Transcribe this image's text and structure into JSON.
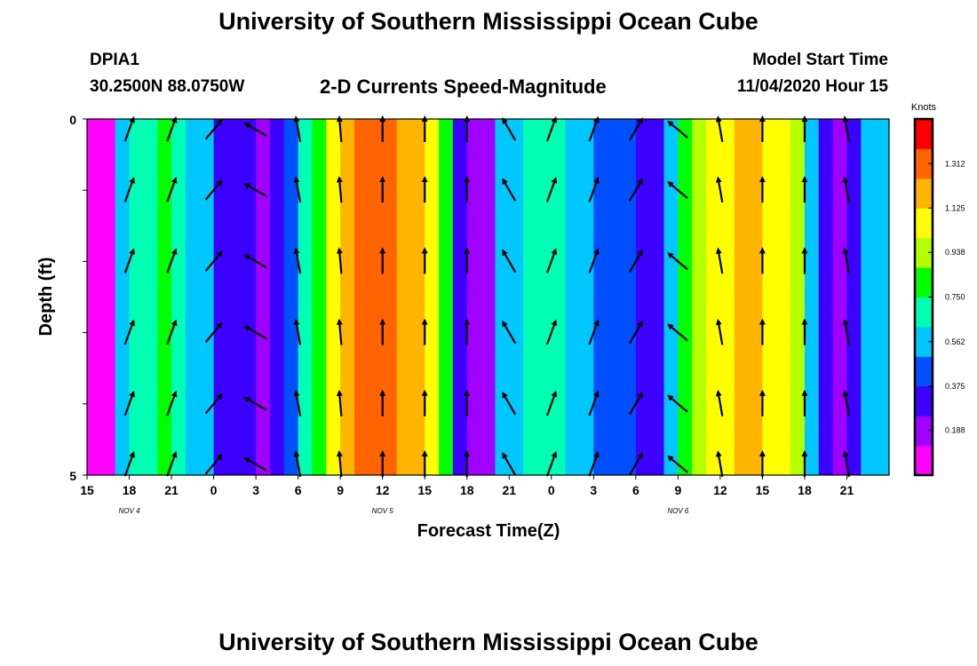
{
  "header": {
    "title": "University of Southern Mississippi Ocean Cube",
    "station": "DPIA1",
    "coords": "30.2500N 88.0750W",
    "plot_title": "2-D Currents Speed-Magnitude",
    "model_start_label": "Model Start Time",
    "model_start_value": "11/04/2020 Hour 15"
  },
  "footer": {
    "title": "University of Southern Mississippi Ocean Cube"
  },
  "chart_data": {
    "type": "heatmap",
    "title": "2-D Currents Speed-Magnitude",
    "xlabel": "Forecast Time(Z)",
    "ylabel": "Depth (ft)",
    "x_tick_labels": [
      "15",
      "18",
      "21",
      "0",
      "3",
      "6",
      "9",
      "12",
      "15",
      "18",
      "21",
      "0",
      "3",
      "6",
      "9",
      "12",
      "15",
      "18",
      "21"
    ],
    "date_labels": [
      {
        "text": "NOV 4",
        "tick_index": 1
      },
      {
        "text": "NOV 5",
        "tick_index": 7
      },
      {
        "text": "NOV 6",
        "tick_index": 14
      }
    ],
    "y_tick_labels": [
      "0",
      "5"
    ],
    "ylim": [
      0,
      5
    ],
    "colorbar": {
      "unit": "Knots",
      "tick_labels": [
        "1.312",
        "1.125",
        "0.938",
        "0.750",
        "0.562",
        "0.375",
        "0.188"
      ],
      "range": [
        0,
        1.5
      ],
      "colors": [
        "#ff00ff",
        "#a000ff",
        "#3c00ff",
        "#0050ff",
        "#00c8ff",
        "#00ffb4",
        "#00ff00",
        "#b4ff00",
        "#ffff00",
        "#ffb400",
        "#ff6400",
        "#ff0000"
      ]
    },
    "speed_profile": {
      "hours": [
        15,
        16,
        17,
        18,
        19,
        20,
        21,
        22,
        23,
        24,
        25,
        26,
        27,
        28,
        29,
        30,
        31,
        32,
        33,
        34,
        35,
        36,
        37,
        38,
        39,
        40,
        41,
        42,
        43,
        44,
        45,
        46,
        47,
        48,
        49,
        50,
        51,
        52,
        53,
        54,
        55,
        56,
        57,
        58,
        59,
        60,
        61,
        62,
        63,
        64,
        65,
        66,
        67,
        68,
        69,
        70,
        71,
        72
      ],
      "knots": [
        0.1,
        0.1,
        0.55,
        0.65,
        0.72,
        0.78,
        0.7,
        0.62,
        0.5,
        0.35,
        0.28,
        0.25,
        0.22,
        0.3,
        0.38,
        0.7,
        0.85,
        1.0,
        1.18,
        1.3,
        1.3,
        1.25,
        1.2,
        1.15,
        1.05,
        0.8,
        0.35,
        0.2,
        0.15,
        0.5,
        0.62,
        0.68,
        0.72,
        0.68,
        0.6,
        0.52,
        0.48,
        0.45,
        0.4,
        0.32,
        0.28,
        0.6,
        0.85,
        0.98,
        1.08,
        1.12,
        1.15,
        1.15,
        1.12,
        1.05,
        0.9,
        0.62,
        0.3,
        0.18,
        0.35,
        0.5,
        0.62,
        0.75
      ]
    },
    "vector_directions_deg": [
      20,
      20,
      40,
      -60,
      -10,
      -5,
      0,
      0,
      0,
      -30,
      20,
      20,
      30,
      -50,
      -10,
      0,
      0,
      -10
    ]
  }
}
